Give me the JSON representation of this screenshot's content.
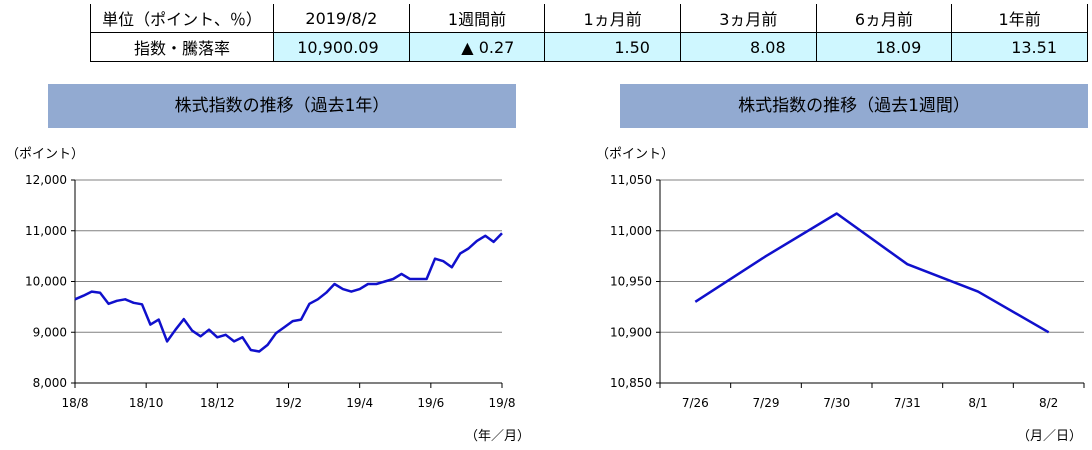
{
  "summary": {
    "headers": [
      "単位（ポイント、％）",
      "2019/8/2",
      "1週間前",
      "1ヵ月前",
      "3ヵ月前",
      "6ヵ月前",
      "1年前"
    ],
    "row_label": "指数・騰落率",
    "values": [
      "10,900.09",
      "▲ 0.27",
      "1.50",
      "8.08",
      "18.09",
      "13.51"
    ]
  },
  "chart_data": [
    {
      "type": "line",
      "title": "株式指数の推移（過去1年）",
      "ylabel": "（ポイント）",
      "xlabel": "（年／月）",
      "ylim": [
        8000,
        12000
      ],
      "yticks": [
        8000,
        9000,
        10000,
        11000,
        12000
      ],
      "ytick_labels": [
        "8,000",
        "9,000",
        "10,000",
        "11,000",
        "12,000"
      ],
      "xtick_labels": [
        "18/8",
        "18/10",
        "18/12",
        "19/2",
        "19/4",
        "19/6",
        "19/8"
      ],
      "grid": true,
      "color": "#1010cc",
      "x": [
        "18/8",
        "18/8",
        "18/8",
        "18/8",
        "18/9",
        "18/9",
        "18/9",
        "18/9",
        "18/10",
        "18/10",
        "18/10",
        "18/10",
        "18/10",
        "18/10",
        "18/11",
        "18/11",
        "18/11",
        "18/11",
        "18/11",
        "18/12",
        "18/12",
        "18/12",
        "18/12",
        "18/12",
        "19/1",
        "19/1",
        "19/1",
        "19/1",
        "19/2",
        "19/2",
        "19/2",
        "19/3",
        "19/3",
        "19/3",
        "19/3",
        "19/4",
        "19/4",
        "19/4",
        "19/4",
        "19/5",
        "19/5",
        "19/5",
        "19/5",
        "19/6",
        "19/6",
        "19/6",
        "19/6",
        "19/7",
        "19/7",
        "19/7",
        "19/7",
        "19/8"
      ],
      "values": [
        9650,
        9720,
        9800,
        9780,
        9560,
        9620,
        9650,
        9580,
        9550,
        9150,
        9250,
        8820,
        9050,
        9260,
        9030,
        8920,
        9050,
        8900,
        8950,
        8820,
        8900,
        8650,
        8620,
        8750,
        8980,
        9100,
        9220,
        9250,
        9560,
        9650,
        9780,
        9950,
        9850,
        9800,
        9850,
        9950,
        9950,
        10000,
        10050,
        10150,
        10050,
        10050,
        10050,
        10450,
        10400,
        10280,
        10550,
        10650,
        10800,
        10900,
        10780,
        10950
      ]
    },
    {
      "type": "line",
      "title": "株式指数の推移（過去1週間）",
      "ylabel": "（ポイント）",
      "xlabel": "（月／日）",
      "ylim": [
        10850,
        11050
      ],
      "yticks": [
        10850,
        10900,
        10950,
        11000,
        11050
      ],
      "ytick_labels": [
        "10,850",
        "10,900",
        "10,950",
        "11,000",
        "11,050"
      ],
      "categories": [
        "7/26",
        "7/29",
        "7/30",
        "7/31",
        "8/1",
        "8/2"
      ],
      "values": [
        10930,
        10975,
        11017,
        10967,
        10940,
        10900
      ],
      "grid": true,
      "color": "#1010cc"
    }
  ]
}
